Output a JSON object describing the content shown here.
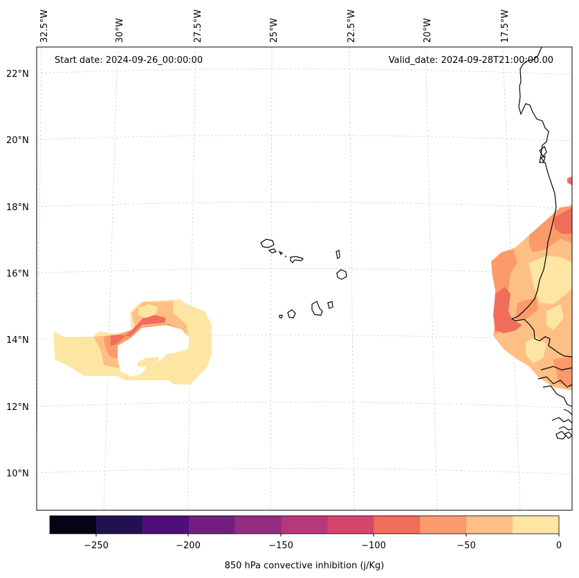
{
  "map": {
    "start_date": "Start date: 2024-09-26_00:00:00",
    "valid_date": "Valid_date: 2024-09-28T21:00:00.00",
    "lon_labels": [
      "32.5°W",
      "30°W",
      "27.5°W",
      "25°W",
      "22.5°W",
      "20°W",
      "17.5°W"
    ],
    "lat_labels": [
      "22°N",
      "20°N",
      "18°N",
      "16°N",
      "14°N",
      "12°N",
      "10°N"
    ]
  },
  "colorbar": {
    "label": "850 hPa convective inhibition (j/Kg)",
    "ticks": [
      "−250",
      "−200",
      "−150",
      "−100",
      "−50",
      "0"
    ],
    "range": [
      -275,
      0
    ],
    "colors": [
      "#050417",
      "#221150",
      "#4f0f7a",
      "#721f81",
      "#952c80",
      "#b73779",
      "#d6456c",
      "#f06c5b",
      "#fb9a6a",
      "#febf84",
      "#fde6a4"
    ]
  }
}
